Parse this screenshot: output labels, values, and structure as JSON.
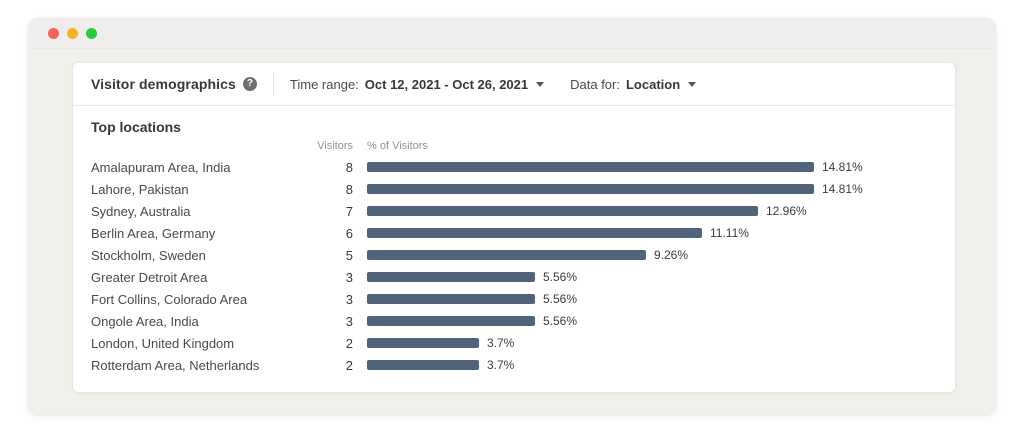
{
  "window": {
    "controls": [
      {
        "name": "close",
        "color": "#f8605a"
      },
      {
        "name": "minimize",
        "color": "#f8b226"
      },
      {
        "name": "maximize",
        "color": "#2dc93d"
      }
    ]
  },
  "panel": {
    "title": "Visitor demographics",
    "help_icon": "?",
    "time_range": {
      "label": "Time range:",
      "value": "Oct 12, 2021 - Oct 26, 2021"
    },
    "data_for": {
      "label": "Data for:",
      "value": "Location"
    }
  },
  "chart_data": {
    "type": "bar",
    "orientation": "horizontal",
    "title": "Top locations",
    "columns": [
      "Visitors",
      "% of Visitors"
    ],
    "rows": [
      {
        "location": "Amalapuram Area, India",
        "visitors": 8,
        "percent_value": 14.81,
        "percent": "14.81%"
      },
      {
        "location": "Lahore, Pakistan",
        "visitors": 8,
        "percent_value": 14.81,
        "percent": "14.81%"
      },
      {
        "location": "Sydney, Australia",
        "visitors": 7,
        "percent_value": 12.96,
        "percent": "12.96%"
      },
      {
        "location": "Berlin Area, Germany",
        "visitors": 6,
        "percent_value": 11.11,
        "percent": "11.11%"
      },
      {
        "location": "Stockholm, Sweden",
        "visitors": 5,
        "percent_value": 9.26,
        "percent": "9.26%"
      },
      {
        "location": "Greater Detroit Area",
        "visitors": 3,
        "percent_value": 5.56,
        "percent": "5.56%"
      },
      {
        "location": "Fort Collins, Colorado Area",
        "visitors": 3,
        "percent_value": 5.56,
        "percent": "5.56%"
      },
      {
        "location": "Ongole Area, India",
        "visitors": 3,
        "percent_value": 5.56,
        "percent": "5.56%"
      },
      {
        "location": "London, United Kingdom",
        "visitors": 2,
        "percent_value": 3.7,
        "percent": "3.7%"
      },
      {
        "location": "Rotterdam Area, Netherlands",
        "visitors": 2,
        "percent_value": 3.7,
        "percent": "3.7%"
      }
    ],
    "max_visitors": 8,
    "bar_color": "#506379",
    "legend": "none",
    "grid": "off"
  }
}
